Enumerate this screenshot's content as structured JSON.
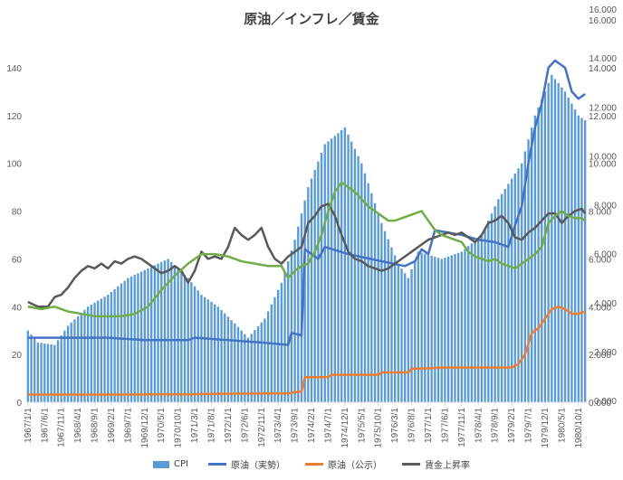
{
  "chart_data": {
    "type": "bar+line",
    "title": "原油／インフレ／賃金",
    "xlabel": "",
    "ylabel": "",
    "ylim": [
      0,
      160
    ],
    "y_ticks": [
      0,
      20,
      40,
      60,
      80,
      100,
      120,
      140
    ],
    "y2lim": [
      0,
      16
    ],
    "y2_ticks_outer": [
      "0.000",
      "2.000",
      "4.000",
      "6.000",
      "8.000",
      "10.000",
      "12.000",
      "14.000",
      "16.000"
    ],
    "y2_ticks_inner": [
      "0.000",
      "2.000",
      "4.000",
      "6.000",
      "8.000",
      "10.000",
      "12.000",
      "14.000",
      "16.000"
    ],
    "x_ticks": [
      "1967/1/1",
      "1967/6/1",
      "1967/11/1",
      "1968/4/1",
      "1968/9/1",
      "1969/2/1",
      "1969/7/1",
      "1969/12/1",
      "1970/5/1",
      "1970/10/1",
      "1971/3/1",
      "1971/8/1",
      "1972/1/1",
      "1972/6/1",
      "1972/11/1",
      "1973/4/1",
      "1973/9/1",
      "1974/2/1",
      "1974/7/1",
      "1974/12/1",
      "1975/5/1",
      "1975/10/1",
      "1976/3/1",
      "1976/8/1",
      "1977/1/1",
      "1977/6/1",
      "1977/11/1",
      "1978/4/1",
      "1978/9/1",
      "1979/2/1",
      "1979/7/1",
      "1979/12/1",
      "1980/5/1",
      "1980/10/1"
    ],
    "period": "1967/1 - 1980/12 monthly",
    "grid": false,
    "legend_position": "bottom",
    "colors": {
      "cpi": "#5b9bd5",
      "oil_actual": "#4472c4",
      "oil_official": "#ed7d31",
      "wage": "#595959",
      "wage_green": "#70ad47"
    },
    "series": [
      {
        "name": "CPI",
        "axis": "left",
        "kind": "bar",
        "anchors": [
          [
            0,
            30
          ],
          [
            3,
            25
          ],
          [
            8,
            24
          ],
          [
            12,
            32
          ],
          [
            18,
            40
          ],
          [
            24,
            45
          ],
          [
            30,
            52
          ],
          [
            36,
            56
          ],
          [
            42,
            60
          ],
          [
            48,
            52
          ],
          [
            52,
            45
          ],
          [
            57,
            40
          ],
          [
            62,
            33
          ],
          [
            66,
            27
          ],
          [
            71,
            35
          ],
          [
            76,
            50
          ],
          [
            80,
            68
          ],
          [
            84,
            90
          ],
          [
            89,
            108
          ],
          [
            95,
            115
          ],
          [
            100,
            100
          ],
          [
            106,
            75
          ],
          [
            111,
            58
          ],
          [
            114,
            52
          ],
          [
            117,
            63
          ],
          [
            124,
            60
          ],
          [
            130,
            63
          ],
          [
            136,
            70
          ],
          [
            141,
            85
          ],
          [
            148,
            100
          ],
          [
            152,
            120
          ],
          [
            157,
            137
          ],
          [
            161,
            130
          ],
          [
            165,
            120
          ],
          [
            167,
            118
          ]
        ]
      },
      {
        "name": "原油（実勢）",
        "axis": "right",
        "kind": "line",
        "anchors": [
          [
            0,
            2.7
          ],
          [
            12,
            2.7
          ],
          [
            24,
            2.7
          ],
          [
            35,
            2.6
          ],
          [
            48,
            2.6
          ],
          [
            50,
            2.7
          ],
          [
            60,
            2.6
          ],
          [
            70,
            2.5
          ],
          [
            78,
            2.4
          ],
          [
            79,
            2.9
          ],
          [
            82,
            2.8
          ],
          [
            83,
            6.4
          ],
          [
            85,
            6.2
          ],
          [
            87,
            6.0
          ],
          [
            89,
            6.5
          ],
          [
            96,
            6.2
          ],
          [
            106,
            5.9
          ],
          [
            113,
            5.7
          ],
          [
            116,
            5.9
          ],
          [
            118,
            6.4
          ],
          [
            120,
            6.2
          ],
          [
            122,
            7.2
          ],
          [
            130,
            7.0
          ],
          [
            135,
            6.8
          ],
          [
            140,
            6.7
          ],
          [
            144,
            6.5
          ],
          [
            146,
            7.4
          ],
          [
            148,
            8.2
          ],
          [
            150,
            10.0
          ],
          [
            152,
            11.5
          ],
          [
            154,
            12.5
          ],
          [
            156,
            14.0
          ],
          [
            158,
            14.3
          ],
          [
            161,
            14.0
          ],
          [
            163,
            13.0
          ],
          [
            165,
            12.7
          ],
          [
            167,
            12.9
          ]
        ]
      },
      {
        "name": "原油（公示）",
        "axis": "right",
        "kind": "line",
        "anchors": [
          [
            0,
            0.32
          ],
          [
            12,
            0.32
          ],
          [
            24,
            0.32
          ],
          [
            36,
            0.33
          ],
          [
            48,
            0.33
          ],
          [
            55,
            0.35
          ],
          [
            72,
            0.37
          ],
          [
            78,
            0.37
          ],
          [
            80,
            0.42
          ],
          [
            82,
            0.45
          ],
          [
            83,
            1.05
          ],
          [
            90,
            1.05
          ],
          [
            91,
            1.15
          ],
          [
            105,
            1.15
          ],
          [
            106,
            1.25
          ],
          [
            114,
            1.25
          ],
          [
            115,
            1.4
          ],
          [
            125,
            1.45
          ],
          [
            141,
            1.45
          ],
          [
            145,
            1.45
          ],
          [
            147,
            1.6
          ],
          [
            149,
            2.0
          ],
          [
            151,
            2.9
          ],
          [
            153,
            3.1
          ],
          [
            155,
            3.5
          ],
          [
            157,
            3.9
          ],
          [
            159,
            4.0
          ],
          [
            161,
            3.9
          ],
          [
            163,
            3.7
          ],
          [
            165,
            3.7
          ],
          [
            167,
            3.8
          ]
        ]
      },
      {
        "name": "賃金上昇率",
        "axis": "right",
        "kind": "line",
        "anchors": [
          [
            0,
            4.2
          ],
          [
            3,
            4.0
          ],
          [
            6,
            4.0
          ],
          [
            8,
            4.4
          ],
          [
            10,
            4.5
          ],
          [
            12,
            4.8
          ],
          [
            14,
            5.2
          ],
          [
            16,
            5.5
          ],
          [
            18,
            5.7
          ],
          [
            20,
            5.6
          ],
          [
            22,
            5.8
          ],
          [
            24,
            5.6
          ],
          [
            26,
            5.9
          ],
          [
            28,
            5.8
          ],
          [
            30,
            6.0
          ],
          [
            32,
            6.1
          ],
          [
            34,
            6.0
          ],
          [
            36,
            5.8
          ],
          [
            38,
            5.6
          ],
          [
            40,
            5.4
          ],
          [
            42,
            5.5
          ],
          [
            44,
            5.7
          ],
          [
            46,
            5.5
          ],
          [
            48,
            5.0
          ],
          [
            50,
            5.5
          ],
          [
            52,
            6.3
          ],
          [
            54,
            6.0
          ],
          [
            56,
            6.1
          ],
          [
            58,
            6.0
          ],
          [
            60,
            6.5
          ],
          [
            62,
            7.3
          ],
          [
            64,
            7.0
          ],
          [
            66,
            6.8
          ],
          [
            68,
            7.0
          ],
          [
            70,
            7.3
          ],
          [
            72,
            6.5
          ],
          [
            74,
            6.0
          ],
          [
            76,
            5.8
          ],
          [
            78,
            6.1
          ],
          [
            80,
            6.3
          ],
          [
            82,
            6.5
          ],
          [
            84,
            7.5
          ],
          [
            86,
            7.8
          ],
          [
            88,
            8.2
          ],
          [
            90,
            8.3
          ],
          [
            92,
            7.8
          ],
          [
            94,
            7.0
          ],
          [
            96,
            6.3
          ],
          [
            98,
            6.0
          ],
          [
            100,
            5.9
          ],
          [
            102,
            5.7
          ],
          [
            104,
            5.6
          ],
          [
            106,
            5.5
          ],
          [
            108,
            5.6
          ],
          [
            110,
            5.8
          ],
          [
            112,
            6.0
          ],
          [
            114,
            6.2
          ],
          [
            116,
            6.4
          ],
          [
            118,
            6.6
          ],
          [
            120,
            6.8
          ],
          [
            122,
            6.9
          ],
          [
            124,
            7.0
          ],
          [
            126,
            7.1
          ],
          [
            128,
            7.0
          ],
          [
            130,
            7.1
          ],
          [
            132,
            6.9
          ],
          [
            134,
            6.7
          ],
          [
            136,
            7.0
          ],
          [
            138,
            7.5
          ],
          [
            140,
            7.6
          ],
          [
            142,
            7.8
          ],
          [
            144,
            7.5
          ],
          [
            146,
            6.9
          ],
          [
            148,
            6.8
          ],
          [
            150,
            7.1
          ],
          [
            152,
            7.3
          ],
          [
            154,
            7.6
          ],
          [
            156,
            7.9
          ],
          [
            158,
            7.9
          ],
          [
            160,
            7.5
          ],
          [
            162,
            7.8
          ],
          [
            164,
            8.0
          ],
          [
            166,
            8.1
          ],
          [
            167,
            7.9
          ]
        ]
      },
      {
        "name": "",
        "axis": "left",
        "kind": "line",
        "anchors": [
          [
            0,
            40
          ],
          [
            4,
            39
          ],
          [
            8,
            40
          ],
          [
            12,
            38
          ],
          [
            16,
            37
          ],
          [
            20,
            36
          ],
          [
            24,
            36
          ],
          [
            28,
            36
          ],
          [
            32,
            37
          ],
          [
            36,
            40
          ],
          [
            40,
            47
          ],
          [
            44,
            53
          ],
          [
            48,
            58
          ],
          [
            52,
            62
          ],
          [
            56,
            62
          ],
          [
            60,
            61
          ],
          [
            64,
            59
          ],
          [
            68,
            58
          ],
          [
            72,
            57
          ],
          [
            76,
            57
          ],
          [
            78,
            52
          ],
          [
            80,
            55
          ],
          [
            82,
            57
          ],
          [
            84,
            58
          ],
          [
            86,
            63
          ],
          [
            88,
            70
          ],
          [
            90,
            80
          ],
          [
            92,
            88
          ],
          [
            94,
            92
          ],
          [
            96,
            90
          ],
          [
            98,
            88
          ],
          [
            100,
            85
          ],
          [
            102,
            82
          ],
          [
            104,
            80
          ],
          [
            106,
            78
          ],
          [
            108,
            76
          ],
          [
            110,
            76
          ],
          [
            112,
            77
          ],
          [
            114,
            78
          ],
          [
            116,
            79
          ],
          [
            118,
            80
          ],
          [
            120,
            76
          ],
          [
            122,
            72
          ],
          [
            124,
            70
          ],
          [
            126,
            69
          ],
          [
            128,
            68
          ],
          [
            130,
            67
          ],
          [
            132,
            63
          ],
          [
            134,
            61
          ],
          [
            136,
            60
          ],
          [
            138,
            59
          ],
          [
            140,
            60
          ],
          [
            142,
            58
          ],
          [
            144,
            57
          ],
          [
            146,
            56
          ],
          [
            148,
            58
          ],
          [
            150,
            60
          ],
          [
            152,
            62
          ],
          [
            154,
            65
          ],
          [
            156,
            75
          ],
          [
            158,
            78
          ],
          [
            160,
            80
          ],
          [
            162,
            78
          ],
          [
            164,
            77
          ],
          [
            166,
            77
          ],
          [
            167,
            76
          ]
        ]
      }
    ]
  }
}
